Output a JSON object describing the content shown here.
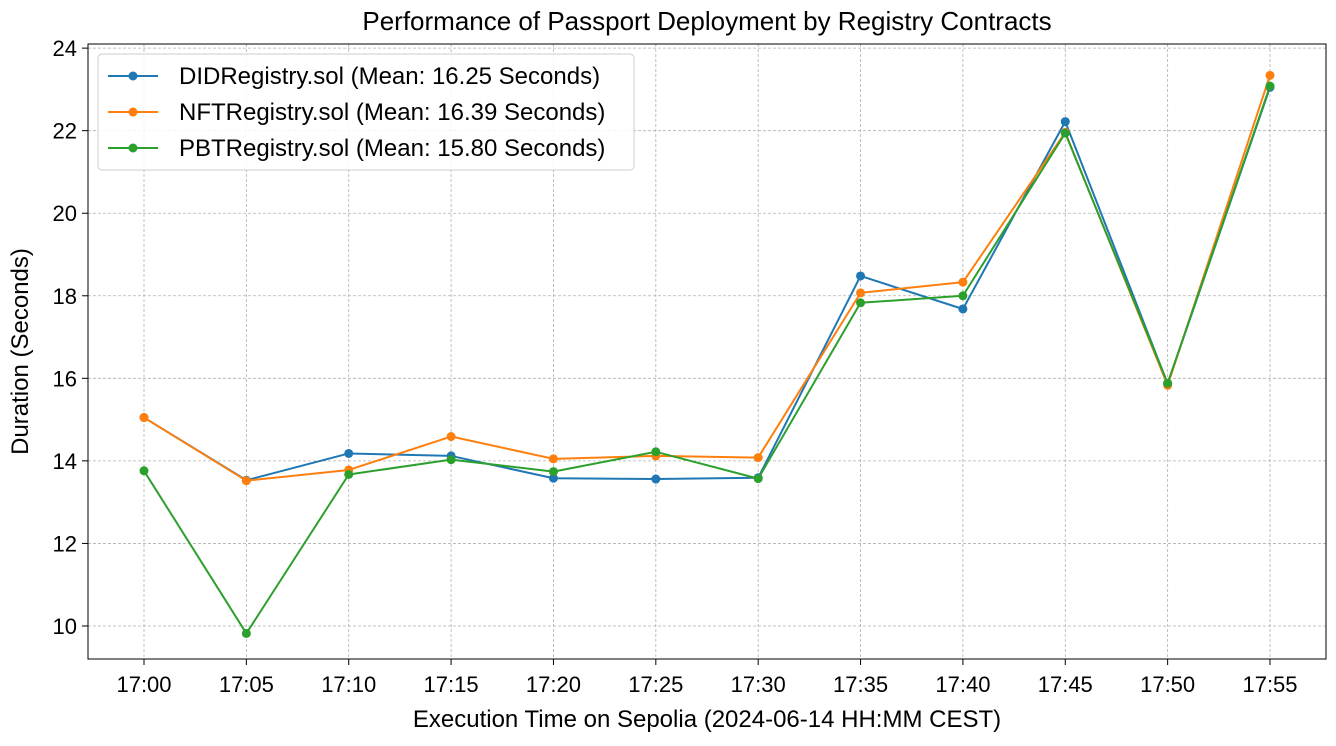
{
  "chart_data": {
    "type": "line",
    "title": "Performance of Passport Deployment by Registry Contracts",
    "xlabel": "Execution Time on Sepolia (2024-06-14 HH:MM CEST)",
    "ylabel": "Duration (Seconds)",
    "categories": [
      "17:00",
      "17:05",
      "17:10",
      "17:15",
      "17:20",
      "17:25",
      "17:30",
      "17:35",
      "17:40",
      "17:45",
      "17:50",
      "17:55"
    ],
    "ylim": [
      9.2,
      24.1
    ],
    "yticks": [
      10,
      12,
      14,
      16,
      18,
      20,
      22,
      24
    ],
    "grid": true,
    "legend_position": "top-left",
    "series": [
      {
        "name": "DIDRegistry.sol (Mean: 16.25 Seconds)",
        "color": "#1f77b4",
        "values": [
          15.05,
          13.53,
          14.18,
          14.12,
          13.58,
          13.56,
          13.59,
          18.48,
          17.68,
          22.22,
          15.87,
          23.05
        ]
      },
      {
        "name": "NFTRegistry.sol (Mean: 16.39 Seconds)",
        "color": "#ff7f0e",
        "values": [
          15.05,
          13.52,
          13.78,
          14.59,
          14.05,
          14.12,
          14.08,
          18.07,
          18.33,
          21.96,
          15.83,
          23.34
        ]
      },
      {
        "name": "PBTRegistry.sol (Mean: 15.80 Seconds)",
        "color": "#2ca02c",
        "values": [
          13.76,
          9.82,
          13.67,
          14.03,
          13.74,
          14.22,
          13.57,
          17.83,
          18.0,
          21.94,
          15.88,
          23.08
        ]
      }
    ]
  }
}
